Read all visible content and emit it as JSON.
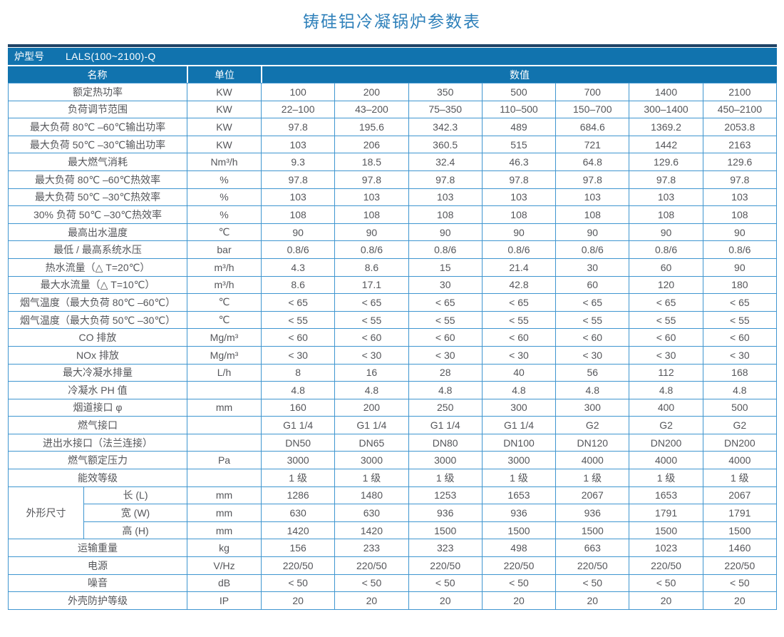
{
  "title": "铸硅铝冷凝锅炉参数表",
  "model": {
    "label": "炉型号",
    "value": "LALS(100~2100)-Q"
  },
  "columns": {
    "name": "名称",
    "unit": "单位",
    "value": "数值"
  },
  "colors": {
    "header_blue": "#1173ae",
    "top_bar_navy": "#1e4265",
    "grid_blue": "#3f96d0",
    "title_blue": "#2e80ba",
    "text_gray": "#55565a"
  },
  "table": {
    "rows": [
      {
        "name": "额定热功率",
        "unit": "KW",
        "values": [
          "100",
          "200",
          "350",
          "500",
          "700",
          "1400",
          "2100"
        ]
      },
      {
        "name": "负荷调节范围",
        "unit": "KW",
        "values": [
          "22–100",
          "43–200",
          "75–350",
          "110–500",
          "150–700",
          "300–1400",
          "450–2100"
        ]
      },
      {
        "name": "最大负荷 80℃ –60℃输出功率",
        "unit": "KW",
        "values": [
          "97.8",
          "195.6",
          "342.3",
          "489",
          "684.6",
          "1369.2",
          "2053.8"
        ]
      },
      {
        "name": "最大负荷 50℃ –30℃输出功率",
        "unit": "KW",
        "values": [
          "103",
          "206",
          "360.5",
          "515",
          "721",
          "1442",
          "2163"
        ]
      },
      {
        "name": "最大燃气消耗",
        "unit": "Nm³/h",
        "values": [
          "9.3",
          "18.5",
          "32.4",
          "46.3",
          "64.8",
          "129.6",
          "129.6"
        ]
      },
      {
        "name": "最大负荷 80℃ –60℃热效率",
        "unit": "%",
        "values": [
          "97.8",
          "97.8",
          "97.8",
          "97.8",
          "97.8",
          "97.8",
          "97.8"
        ]
      },
      {
        "name": "最大负荷 50℃ –30℃热效率",
        "unit": "%",
        "values": [
          "103",
          "103",
          "103",
          "103",
          "103",
          "103",
          "103"
        ]
      },
      {
        "name": "30% 负荷 50℃ –30℃热效率",
        "unit": "%",
        "values": [
          "108",
          "108",
          "108",
          "108",
          "108",
          "108",
          "108"
        ]
      },
      {
        "name": "最高出水温度",
        "unit": "℃",
        "values": [
          "90",
          "90",
          "90",
          "90",
          "90",
          "90",
          "90"
        ]
      },
      {
        "name": "最低 / 最高系统水压",
        "unit": "bar",
        "values": [
          "0.8/6",
          "0.8/6",
          "0.8/6",
          "0.8/6",
          "0.8/6",
          "0.8/6",
          "0.8/6"
        ]
      },
      {
        "name": "热水流量（△ T=20℃）",
        "unit": "m³/h",
        "values": [
          "4.3",
          "8.6",
          "15",
          "21.4",
          "30",
          "60",
          "90"
        ]
      },
      {
        "name": "最大水流量（△ T=10℃）",
        "unit": "m³/h",
        "values": [
          "8.6",
          "17.1",
          "30",
          "42.8",
          "60",
          "120",
          "180"
        ]
      },
      {
        "name": "烟气温度（最大负荷 80℃ –60℃）",
        "unit": "℃",
        "values": [
          "< 65",
          "< 65",
          "< 65",
          "< 65",
          "< 65",
          "< 65",
          "< 65"
        ]
      },
      {
        "name": "烟气温度（最大负荷 50℃ –30℃）",
        "unit": "℃",
        "values": [
          "< 55",
          "< 55",
          "< 55",
          "< 55",
          "< 55",
          "< 55",
          "< 55"
        ]
      },
      {
        "name": "CO 排放",
        "unit": "Mg/m³",
        "values": [
          "< 60",
          "< 60",
          "< 60",
          "< 60",
          "< 60",
          "< 60",
          "< 60"
        ]
      },
      {
        "name": "NOx 排放",
        "unit": "Mg/m³",
        "values": [
          "< 30",
          "< 30",
          "< 30",
          "< 30",
          "< 30",
          "< 30",
          "< 30"
        ]
      },
      {
        "name": "最大冷凝水排量",
        "unit": "L/h",
        "values": [
          "8",
          "16",
          "28",
          "40",
          "56",
          "112",
          "168"
        ]
      },
      {
        "name": "冷凝水 PH 值",
        "unit": "",
        "values": [
          "4.8",
          "4.8",
          "4.8",
          "4.8",
          "4.8",
          "4.8",
          "4.8"
        ]
      },
      {
        "name": "烟道接口 φ",
        "unit": "mm",
        "values": [
          "160",
          "200",
          "250",
          "300",
          "300",
          "400",
          "500"
        ]
      },
      {
        "name": "燃气接口",
        "unit": "",
        "values": [
          "G1 1/4",
          "G1 1/4",
          "G1 1/4",
          "G1 1/4",
          "G2",
          "G2",
          "G2"
        ]
      },
      {
        "name": "进出水接口（法兰连接）",
        "unit": "",
        "values": [
          "DN50",
          "DN65",
          "DN80",
          "DN100",
          "DN120",
          "DN200",
          "DN200"
        ]
      },
      {
        "name": "燃气额定压力",
        "unit": "Pa",
        "values": [
          "3000",
          "3000",
          "3000",
          "3000",
          "4000",
          "4000",
          "4000"
        ]
      },
      {
        "name": "能效等级",
        "unit": "",
        "values": [
          "1 级",
          "1 级",
          "1 级",
          "1 级",
          "1 级",
          "1 级",
          "1 级"
        ]
      }
    ],
    "size_group": {
      "label": "外形尺寸",
      "rows": [
        {
          "name": "长 (L)",
          "unit": "mm",
          "values": [
            "1286",
            "1480",
            "1253",
            "1653",
            "2067",
            "1653",
            "2067"
          ]
        },
        {
          "name": "宽 (W)",
          "unit": "mm",
          "values": [
            "630",
            "630",
            "936",
            "936",
            "936",
            "1791",
            "1791"
          ]
        },
        {
          "name": "高 (H)",
          "unit": "mm",
          "values": [
            "1420",
            "1420",
            "1500",
            "1500",
            "1500",
            "1500",
            "1500"
          ]
        }
      ]
    },
    "footer_rows": [
      {
        "name": "运输重量",
        "unit": "kg",
        "values": [
          "156",
          "233",
          "323",
          "498",
          "663",
          "1023",
          "1460"
        ]
      },
      {
        "name": "电源",
        "unit": "V/Hz",
        "values": [
          "220/50",
          "220/50",
          "220/50",
          "220/50",
          "220/50",
          "220/50",
          "220/50"
        ]
      },
      {
        "name": "噪音",
        "unit": "dB",
        "values": [
          "< 50",
          "< 50",
          "< 50",
          "< 50",
          "< 50",
          "< 50",
          "< 50"
        ]
      },
      {
        "name": "外壳防护等级",
        "unit": "IP",
        "values": [
          "20",
          "20",
          "20",
          "20",
          "20",
          "20",
          "20"
        ]
      }
    ]
  }
}
